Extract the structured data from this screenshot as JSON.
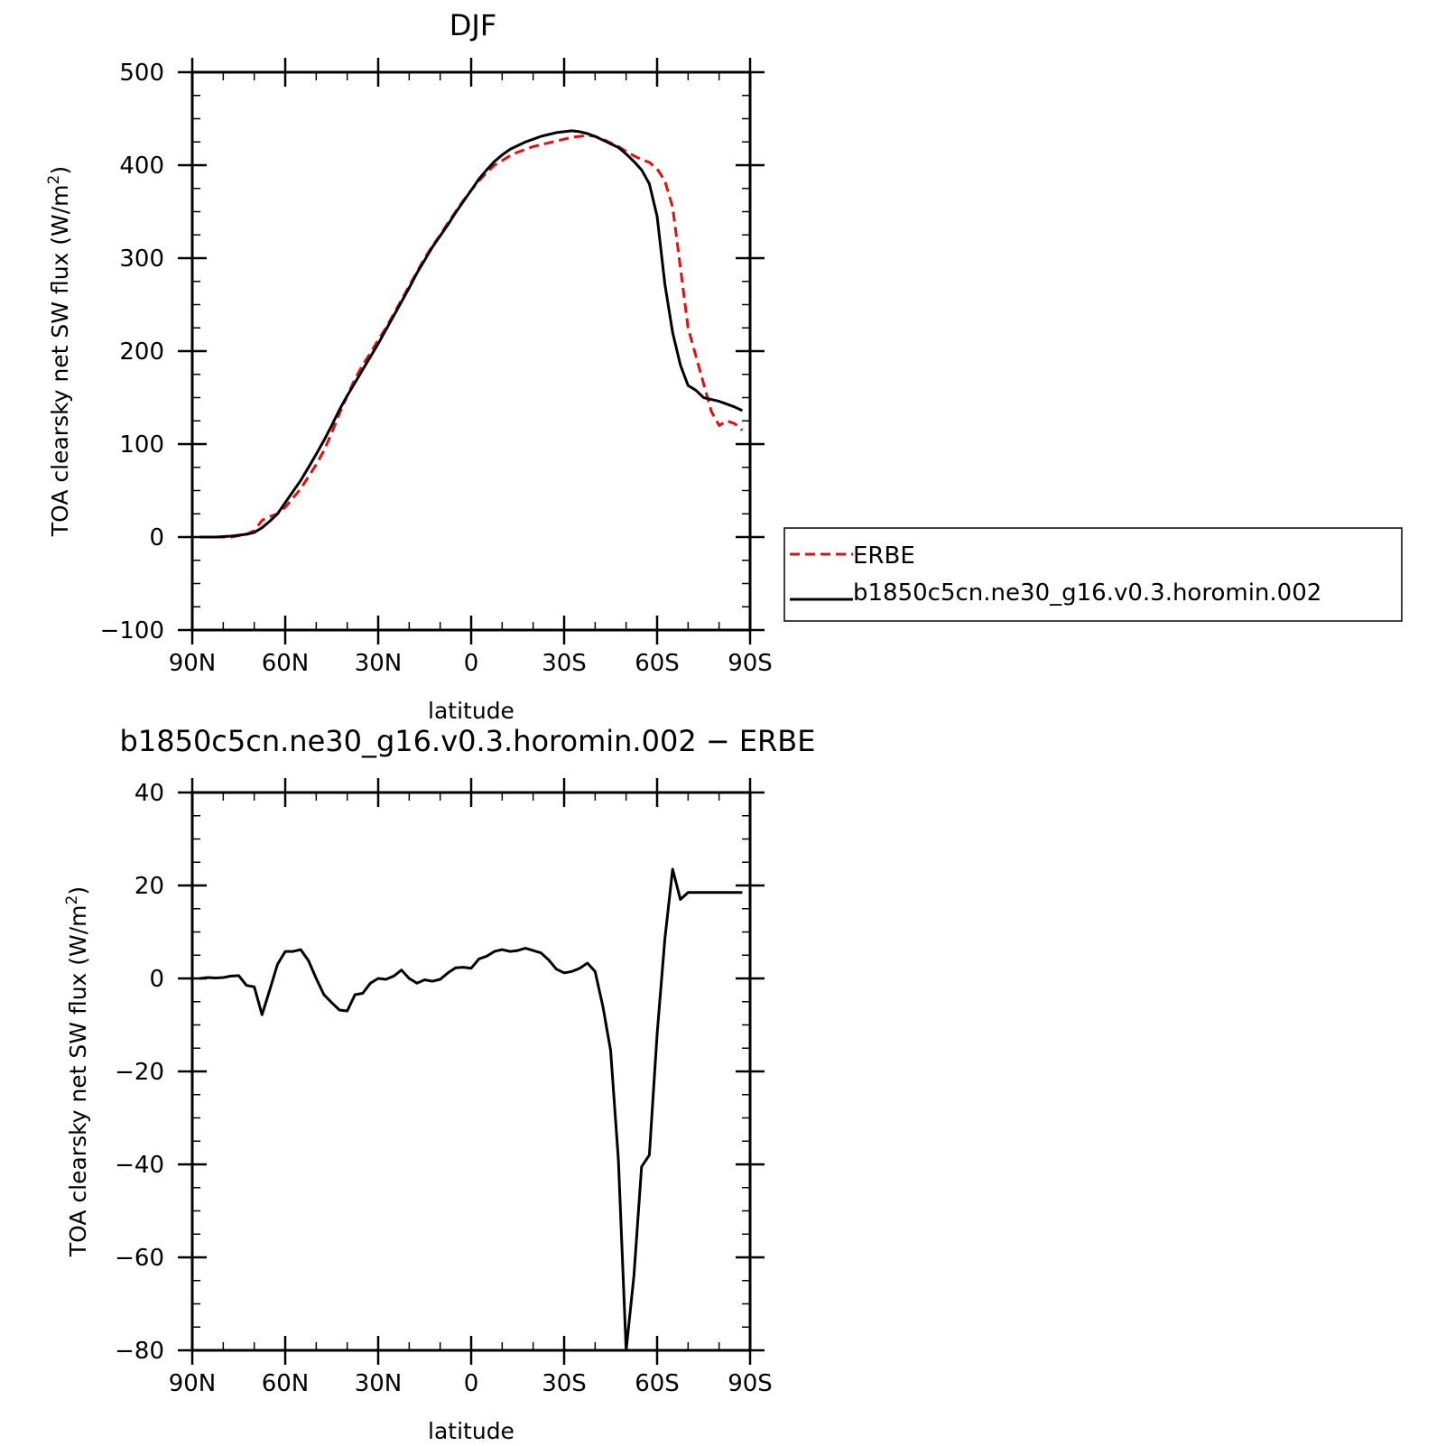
{
  "chart_data": [
    {
      "type": "line",
      "title": "DJF",
      "xlabel": "latitude",
      "ylabel": "TOA clearsky net SW flux (W/m",
      "ylabel_superscript": "2",
      "ylabel_suffix": ")",
      "xlim": [
        -90,
        90
      ],
      "ylim": [
        -100,
        500
      ],
      "xticks": [
        -90,
        -60,
        -30,
        0,
        30,
        60,
        90
      ],
      "xtick_labels": [
        "90N",
        "60N",
        "30N",
        "0",
        "30S",
        "60S",
        "90S"
      ],
      "yticks": [
        -100,
        0,
        100,
        200,
        300,
        400,
        500
      ],
      "ytick_labels": [
        "−100",
        "0",
        "100",
        "200",
        "300",
        "400",
        "500"
      ],
      "legend_position": "right",
      "series": [
        {
          "name": "ERBE",
          "color": "#e01010",
          "dash": "dashed",
          "x": [
            -87.5,
            -82.5,
            -77.5,
            -72.5,
            -70,
            -67.5,
            -65,
            -62.5,
            -60,
            -57.5,
            -55,
            -52.5,
            -50,
            -47.5,
            -45,
            -42.5,
            -40,
            -37.5,
            -35,
            -32.5,
            -30,
            -27.5,
            -25,
            -22.5,
            -20,
            -17.5,
            -15,
            -12.5,
            -10,
            -7.5,
            -5,
            -2.5,
            0,
            2.5,
            5,
            7.5,
            10,
            12.5,
            15,
            17.5,
            20,
            22.5,
            25,
            27.5,
            30,
            32.5,
            35,
            37.5,
            40,
            42.5,
            45,
            47.5,
            50,
            52.5,
            55,
            57.5,
            60,
            62.5,
            65,
            67.5,
            70,
            72.5,
            75,
            77.5,
            80,
            82.5,
            85,
            87.5
          ],
          "y": [
            0,
            0,
            0,
            3,
            7,
            18,
            22,
            25,
            32,
            42,
            52,
            65,
            78,
            93,
            112,
            133,
            152,
            170,
            185,
            198,
            212,
            225,
            240,
            255,
            270,
            285,
            300,
            313,
            325,
            338,
            350,
            362,
            373,
            383,
            392,
            400,
            405,
            410,
            414,
            417,
            420,
            422,
            424,
            426,
            428,
            430,
            431,
            432,
            431,
            428,
            424,
            420,
            415,
            410,
            406,
            403,
            396,
            383,
            355,
            290,
            225,
            195,
            165,
            135,
            120,
            125,
            122,
            115
          ]
        },
        {
          "name": "b1850c5cn.ne30_g16.v0.3.horomin.002",
          "color": "#000000",
          "dash": "solid",
          "x": [
            -87.5,
            -82.5,
            -77.5,
            -72.5,
            -70,
            -67.5,
            -65,
            -62.5,
            -60,
            -57.5,
            -55,
            -52.5,
            -50,
            -47.5,
            -45,
            -42.5,
            -40,
            -37.5,
            -35,
            -32.5,
            -30,
            -27.5,
            -25,
            -22.5,
            -20,
            -17.5,
            -15,
            -12.5,
            -10,
            -7.5,
            -5,
            -2.5,
            0,
            2.5,
            5,
            7.5,
            10,
            12.5,
            15,
            17.5,
            20,
            22.5,
            25,
            27.5,
            30,
            32.5,
            35,
            37.5,
            40,
            42.5,
            45,
            47.5,
            50,
            52.5,
            55,
            57.5,
            60,
            62.5,
            65,
            67.5,
            70,
            72.5,
            75,
            77.5,
            80,
            82.5,
            85,
            87.5
          ],
          "y": [
            0,
            0,
            1,
            3,
            5,
            10,
            17,
            25,
            37,
            49,
            61,
            75,
            89,
            104,
            120,
            137,
            152,
            166,
            180,
            194,
            208,
            223,
            238,
            253,
            268,
            284,
            298,
            312,
            324,
            336,
            349,
            361,
            373,
            385,
            395,
            404,
            411,
            417,
            421,
            425,
            428,
            431,
            433,
            435,
            436,
            437,
            436,
            434,
            431,
            427,
            423,
            419,
            412,
            404,
            395,
            380,
            345,
            272,
            220,
            185,
            163,
            158,
            150,
            148,
            146,
            143,
            140,
            136
          ]
        }
      ]
    },
    {
      "type": "line",
      "title": "b1850c5cn.ne30_g16.v0.3.horomin.002 − ERBE",
      "xlabel": "latitude",
      "ylabel": "TOA clearsky net SW flux (W/m",
      "ylabel_superscript": "2",
      "ylabel_suffix": ")",
      "xlim": [
        -90,
        90
      ],
      "ylim": [
        -80,
        40
      ],
      "xticks": [
        -90,
        -60,
        -30,
        0,
        30,
        60,
        90
      ],
      "xtick_labels": [
        "90N",
        "60N",
        "30N",
        "0",
        "30S",
        "60S",
        "90S"
      ],
      "yticks": [
        -80,
        -60,
        -40,
        -20,
        0,
        20,
        40
      ],
      "ytick_labels": [
        "−80",
        "−60",
        "−40",
        "−20",
        "0",
        "20",
        "40"
      ],
      "series": [
        {
          "name": "",
          "color": "#000000",
          "dash": "solid",
          "x": [
            -87.5,
            -85,
            -82.5,
            -80,
            -77.5,
            -75,
            -72.5,
            -70,
            -67.5,
            -65,
            -62.5,
            -60,
            -57.5,
            -55,
            -52.5,
            -50,
            -47.5,
            -45,
            -42.5,
            -40,
            -37.5,
            -35,
            -32.5,
            -30,
            -27.5,
            -25,
            -22.5,
            -20,
            -17.5,
            -15,
            -12.5,
            -10,
            -7.5,
            -5,
            -2.5,
            0,
            2.5,
            5,
            7.5,
            10,
            12.5,
            15,
            17.5,
            20,
            22.5,
            25,
            27.5,
            30,
            32.5,
            35,
            37.5,
            40,
            42.5,
            45,
            47.5,
            50,
            52.5,
            55,
            57.5,
            60,
            62.5,
            65,
            67.5,
            70,
            72.5,
            75,
            77.5,
            80,
            82.5,
            85,
            87.5
          ],
          "y": [
            0,
            0.2,
            0.1,
            0.2,
            0.5,
            0.6,
            -1.5,
            -1.8,
            -7.8,
            -2.5,
            3,
            5.8,
            5.8,
            6.2,
            3.8,
            0,
            -3.5,
            -5.2,
            -6.8,
            -7,
            -3.5,
            -3.2,
            -1,
            0,
            -0.2,
            0.5,
            1.8,
            0,
            -1,
            -0.3,
            -0.6,
            -0.2,
            1.2,
            2.3,
            2.4,
            2.2,
            4.2,
            4.8,
            5.8,
            6.2,
            5.8,
            6,
            6.5,
            6,
            5.5,
            4,
            2,
            1.2,
            1.5,
            2.2,
            3.3,
            1.5,
            -6,
            -15.5,
            -39,
            -80,
            -64,
            -40.5,
            -38,
            -12,
            8.5,
            23.5,
            17,
            18.5,
            18.5,
            18.5,
            18.5,
            18.5,
            18.5,
            18.5,
            18.5
          ]
        }
      ]
    }
  ]
}
